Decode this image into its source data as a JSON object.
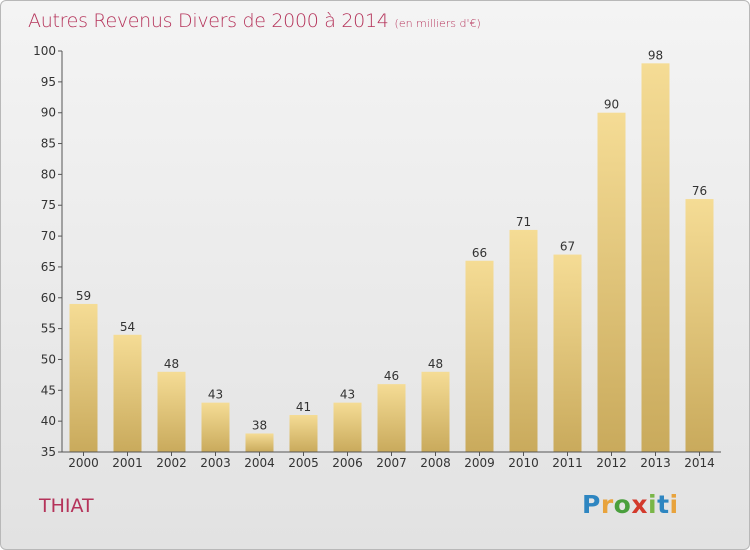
{
  "header": {
    "title": "Autres Revenus Divers de 2000 à 2014",
    "unit": "(en milliers d'€)"
  },
  "footer": {
    "commune": "THIAT",
    "logo": "Proxiti"
  },
  "colors": {
    "title": "#b5335a",
    "bar_top": "#f5dc95",
    "bar_bottom": "#c9aa5c",
    "axis": "#555555"
  },
  "chart_data": {
    "type": "bar",
    "title": "Autres Revenus Divers de 2000 à 2014",
    "subtitle": "(en milliers d'€)",
    "categories": [
      "2000",
      "2001",
      "2002",
      "2003",
      "2004",
      "2005",
      "2006",
      "2007",
      "2008",
      "2009",
      "2010",
      "2011",
      "2012",
      "2013",
      "2014"
    ],
    "values": [
      59,
      54,
      48,
      43,
      38,
      41,
      43,
      46,
      48,
      66,
      71,
      67,
      90,
      98,
      76
    ],
    "ylim": [
      35,
      100
    ],
    "yticks": [
      35,
      40,
      45,
      50,
      55,
      60,
      65,
      70,
      75,
      80,
      85,
      90,
      95,
      100
    ],
    "grid": false,
    "data_labels": true
  }
}
